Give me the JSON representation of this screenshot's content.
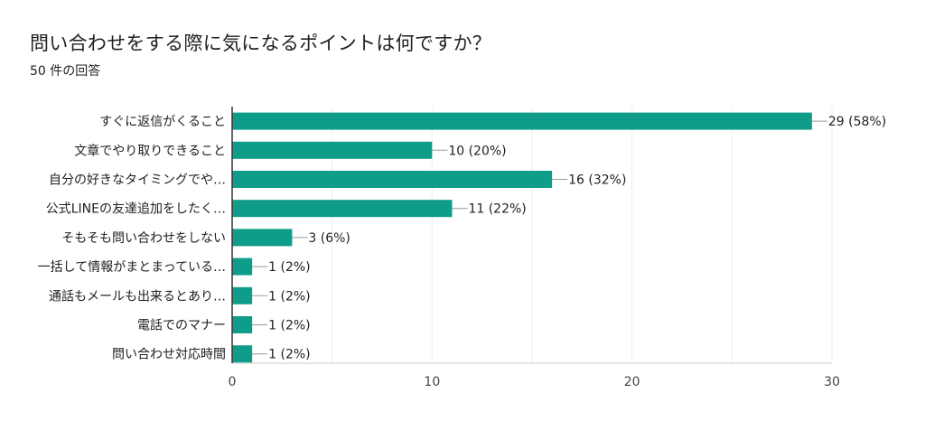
{
  "header": {
    "title": "問い合わせをする際に気になるポイントは何ですか？",
    "response_count": "50 件の回答"
  },
  "colors": {
    "bar": "#0f9d8a",
    "grid": "#eeeeee",
    "axis": "#333333",
    "leader": "#999999"
  },
  "chart_data": {
    "type": "bar",
    "orientation": "horizontal",
    "title": "問い合わせをする際に気になるポイントは何ですか？",
    "subtitle": "50 件の回答",
    "categories": [
      "すぐに返信がくること",
      "文章でやり取りできること",
      "自分の好きなタイミングでや…",
      "公式LINEの友達追加をしたく…",
      "そもそも問い合わせをしない",
      "一括して情報がまとまっている…",
      "通話もメールも出来るとあり…",
      "電話でのマナー",
      "問い合わせ対応時間"
    ],
    "values": [
      29,
      10,
      16,
      11,
      3,
      1,
      1,
      1,
      1
    ],
    "data_labels": [
      "29 (58%)",
      "10 (20%)",
      "16 (32%)",
      "11 (22%)",
      "3 (6%)",
      "1 (2%)",
      "1 (2%)",
      "1 (2%)",
      "1 (2%)"
    ],
    "xlim": [
      0,
      30
    ],
    "xticks": [
      0,
      10,
      20,
      30
    ],
    "grid": true,
    "legend": "none"
  }
}
